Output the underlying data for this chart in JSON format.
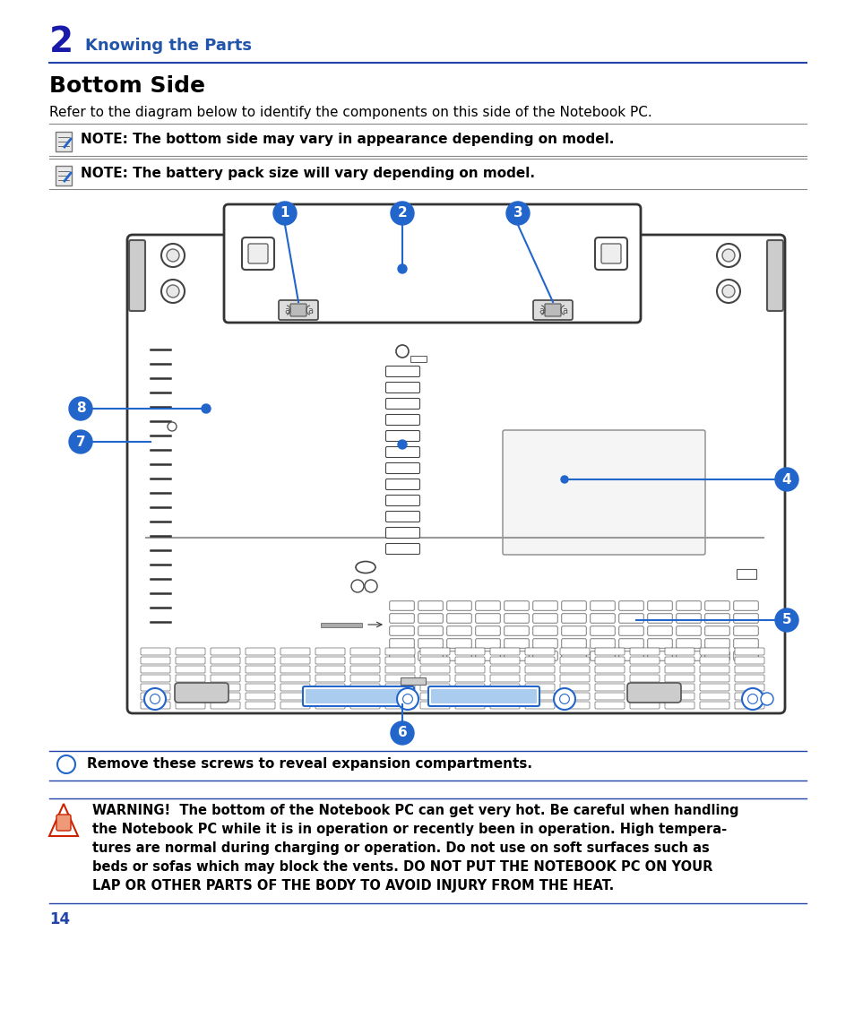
{
  "page_bg": "#ffffff",
  "chapter_num": "2",
  "chapter_num_color": "#1a1aaa",
  "chapter_title": "Knowing the Parts",
  "chapter_title_color": "#2255aa",
  "section_title": "Bottom Side",
  "section_desc": "Refer to the diagram below to identify the components on this side of the Notebook PC.",
  "note1": "NOTE: The bottom side may vary in appearance depending on model.",
  "note2": "NOTE: The battery pack size will vary depending on model.",
  "line_color": "#2244aa",
  "callout_color": "#2266cc",
  "screw_note": "Remove these screws to reveal expansion compartments.",
  "warning_lines": [
    "WARNING!  The bottom of the Notebook PC can get very hot. Be careful when handling",
    "the Notebook PC while it is in operation or recently been in operation. High tempera-",
    "tures are normal during charging or operation. Do not use on soft surfaces such as",
    "beds or sofas which may block the vents. DO NOT PUT THE NOTEBOOK PC ON YOUR",
    "LAP OR OTHER PARTS OF THE BODY TO AVOID INJURY FROM THE HEAT."
  ],
  "page_num": "14",
  "page_num_color": "#2244aa"
}
